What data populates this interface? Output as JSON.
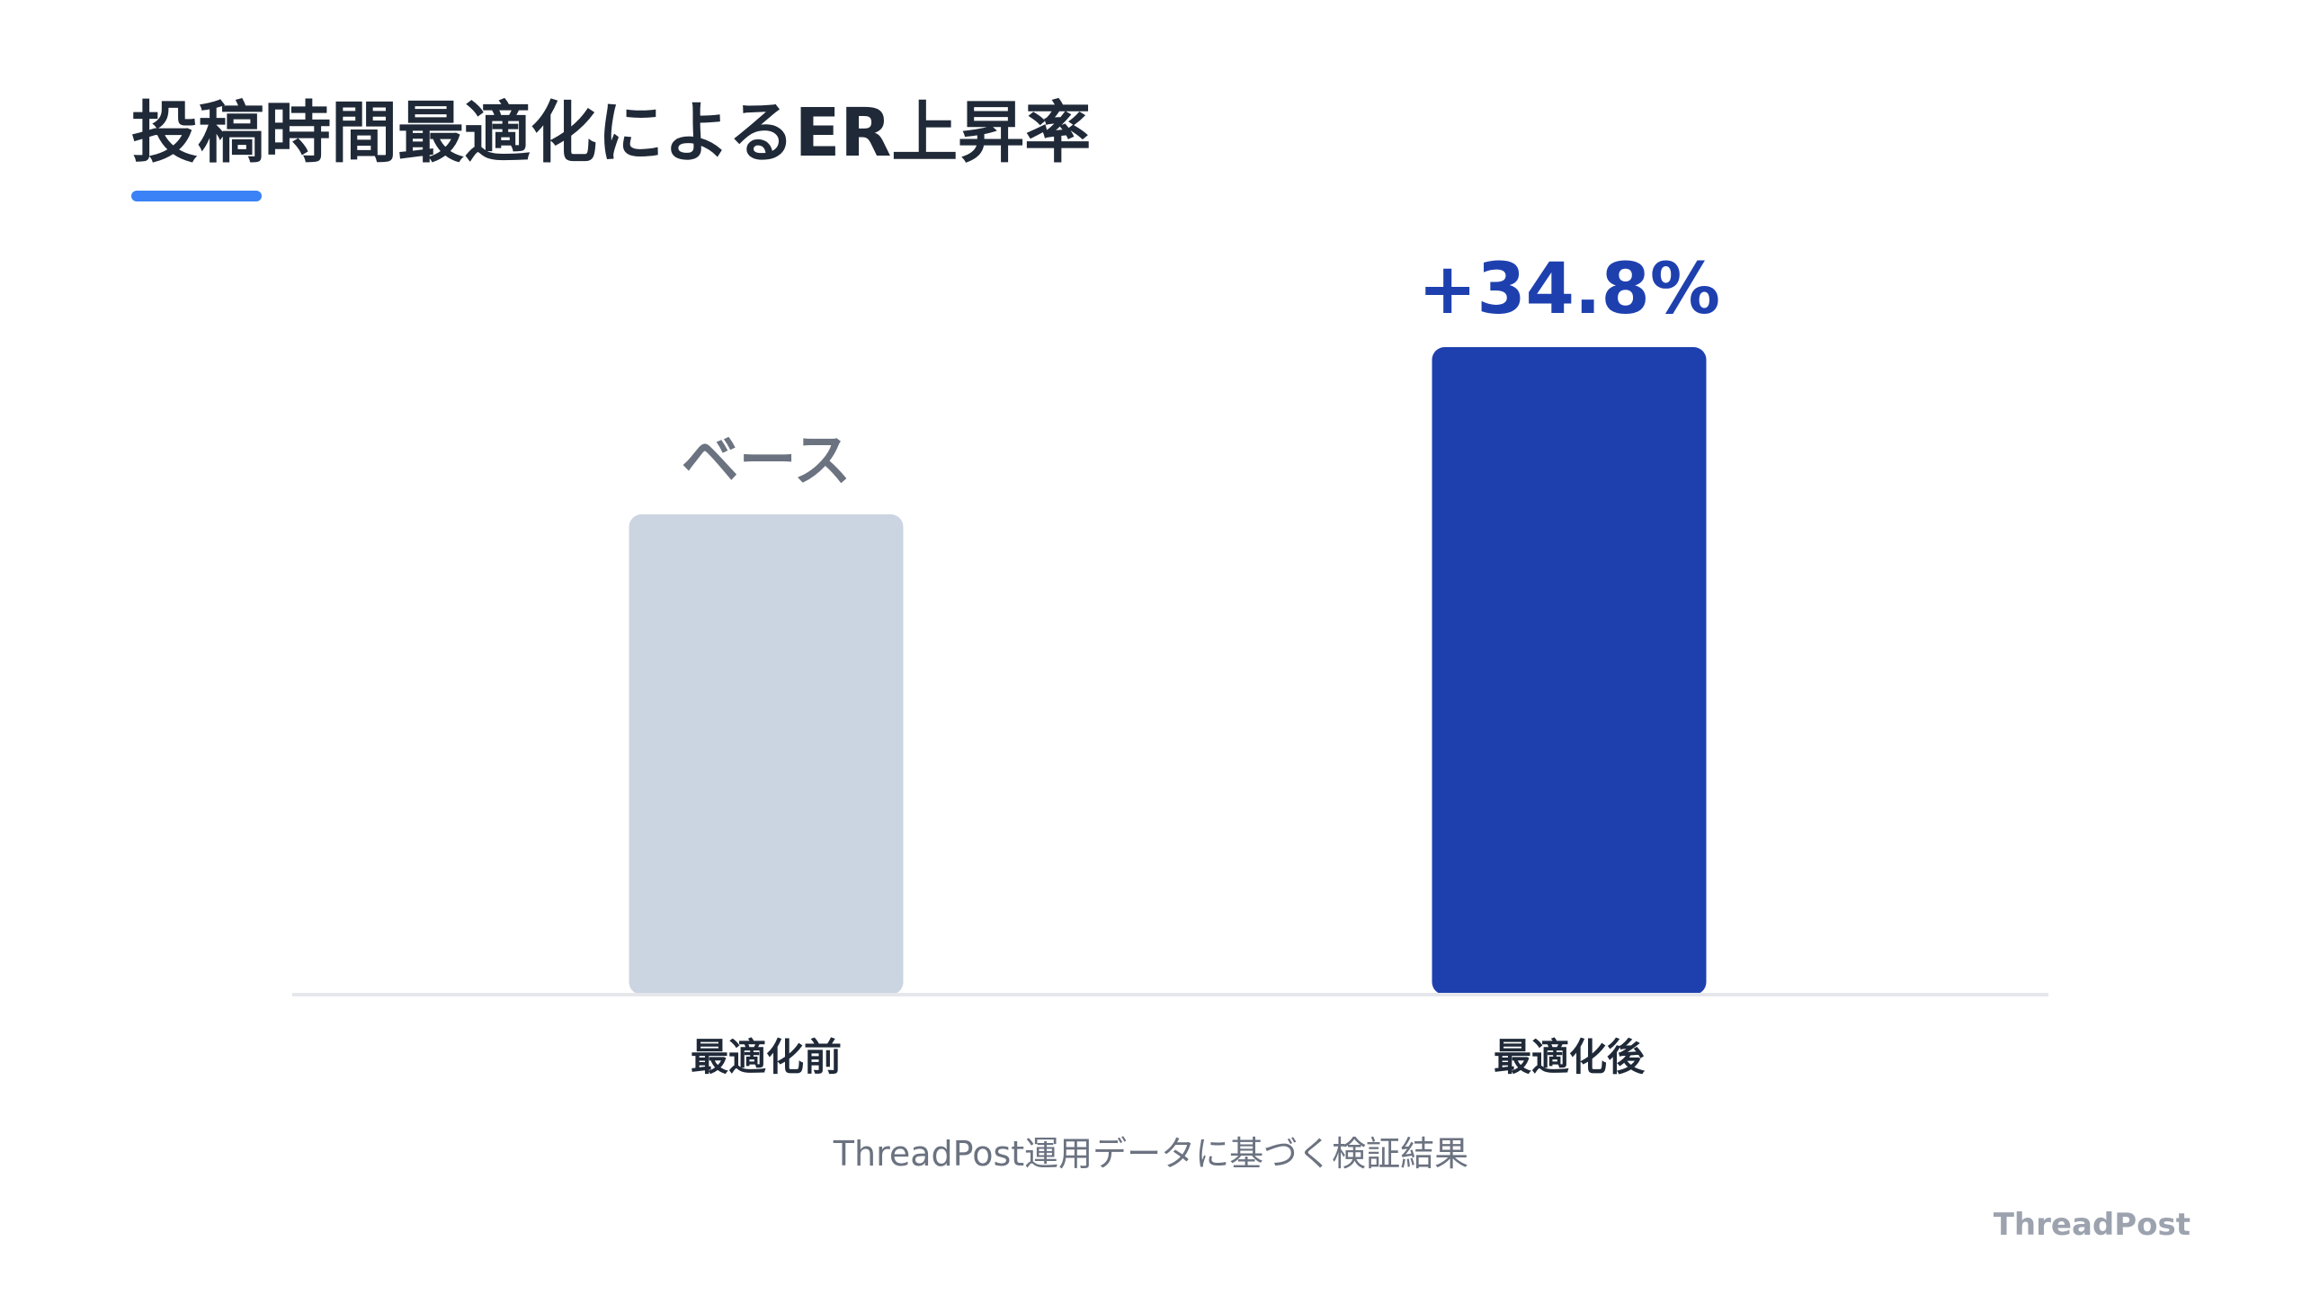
{
  "title": "投稿時間最適化によるER上昇率",
  "caption": "ThreadPost運用データに基づく検証結果",
  "brand": "ThreadPost",
  "colors": {
    "accent": "#3b82f6",
    "title": "#1f2937",
    "baseline": "#e5e7eb",
    "base_bar": "#cbd5e1",
    "base_label": "#6b7280",
    "optimized_bar": "#1e40af",
    "optimized_label": "#1e40af",
    "category_label": "#1f2937"
  },
  "chart_data": {
    "type": "bar",
    "title": "投稿時間最適化によるER上昇率",
    "xlabel": "",
    "ylabel": "",
    "categories": [
      "最適化前",
      "最適化後"
    ],
    "values": [
      100,
      134.8
    ],
    "data_labels": [
      "ベース",
      "+34.8%"
    ],
    "ylim": [
      0,
      134.8
    ],
    "grid": false,
    "legend": "none"
  }
}
